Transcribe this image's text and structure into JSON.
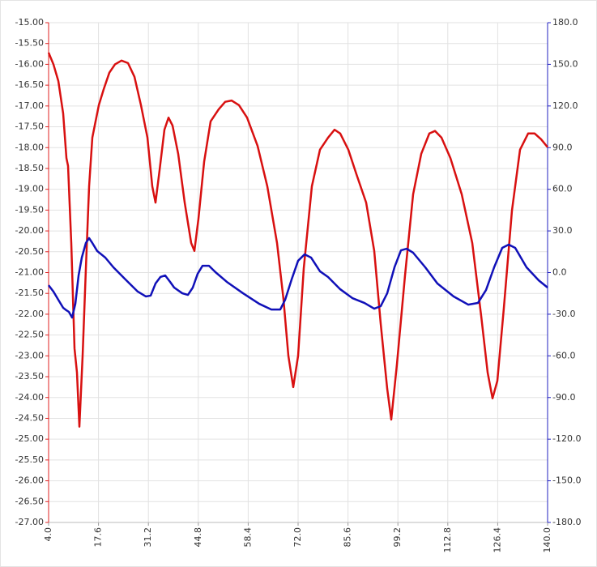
{
  "chart_data": {
    "type": "line",
    "xlim": [
      4,
      140
    ],
    "xticks": [
      {
        "value": 4,
        "label": "4.0"
      },
      17.6,
      31.2,
      44.8,
      58.4,
      {
        "value": 72,
        "label": "72.0"
      },
      85.6,
      99.2,
      112.8,
      126.4,
      {
        "value": 140,
        "label": "140.0"
      }
    ],
    "ylim": [
      -27,
      -15
    ],
    "yticks": [
      {
        "value": -15,
        "label": "-15.00"
      },
      {
        "value": -15.5,
        "label": "-15.50"
      },
      {
        "value": -16,
        "label": "-16.00"
      },
      {
        "value": -16.5,
        "label": "-16.50"
      },
      {
        "value": -17,
        "label": "-17.00"
      },
      {
        "value": -17.5,
        "label": "-17.50"
      },
      {
        "value": -18,
        "label": "-18.00"
      },
      {
        "value": -18.5,
        "label": "-18.50"
      },
      {
        "value": -19,
        "label": "-19.00"
      },
      {
        "value": -19.5,
        "label": "-19.50"
      },
      {
        "value": -20,
        "label": "-20.00"
      },
      {
        "value": -20.5,
        "label": "-20.50"
      },
      {
        "value": -21,
        "label": "-21.00"
      },
      {
        "value": -21.5,
        "label": "-21.50"
      },
      {
        "value": -22,
        "label": "-22.00"
      },
      {
        "value": -22.5,
        "label": "-22.50"
      },
      {
        "value": -23,
        "label": "-23.00"
      },
      {
        "value": -23.5,
        "label": "-23.50"
      },
      {
        "value": -24,
        "label": "-24.00"
      },
      {
        "value": -24.5,
        "label": "-24.50"
      },
      {
        "value": -25,
        "label": "-25.00"
      },
      {
        "value": -25.5,
        "label": "-25.50"
      },
      {
        "value": -26,
        "label": "-26.00"
      },
      {
        "value": -26.5,
        "label": "-26.50"
      },
      {
        "value": -27,
        "label": "-27.00"
      }
    ],
    "y2lim": [
      -180,
      180
    ],
    "y2ticks": [
      {
        "value": 180,
        "label": "180.0"
      },
      {
        "value": 150,
        "label": "150.0"
      },
      {
        "value": 120,
        "label": "120.0"
      },
      {
        "value": 90,
        "label": "90.0"
      },
      {
        "value": 60,
        "label": "60.0"
      },
      {
        "value": 30,
        "label": "30.0"
      },
      {
        "value": 0,
        "label": "0.0"
      },
      {
        "value": -30,
        "label": "-30.0"
      },
      {
        "value": -60,
        "label": "-60.0"
      },
      {
        "value": -90,
        "label": "-90.0"
      },
      {
        "value": -120,
        "label": "-120.0"
      },
      {
        "value": -150,
        "label": "-150.0"
      },
      {
        "value": -180,
        "label": "-180.0"
      }
    ],
    "grid": true,
    "y_axis_color": "#e02020",
    "y2_axis_color": "#2020c0",
    "series": [
      {
        "color": "#d81010",
        "x": [
          4.0,
          5.32,
          6.65,
          7.97,
          8.86,
          9.3,
          10.18,
          11.06,
          11.73,
          12.39,
          13.27,
          14.16,
          15.04,
          15.92,
          16.8,
          17.69,
          19.01,
          20.56,
          22.1,
          23.87,
          25.64,
          27.4,
          29.17,
          30.94,
          32.26,
          33.14,
          34.25,
          35.57,
          36.68,
          37.78,
          39.32,
          41.09,
          42.86,
          43.74,
          44.84,
          46.39,
          48.16,
          50.36,
          52.13,
          53.9,
          55.88,
          58.09,
          60.96,
          63.61,
          66.26,
          68.03,
          69.35,
          70.68,
          72.0,
          73.54,
          75.75,
          77.96,
          80.17,
          81.93,
          83.48,
          85.69,
          87.9,
          90.55,
          92.75,
          94.52,
          96.29,
          97.39,
          98.94,
          101.14,
          103.35,
          105.56,
          107.77,
          109.31,
          111.08,
          113.51,
          116.6,
          119.47,
          121.9,
          123.66,
          124.99,
          126.31,
          128.08,
          130.29,
          132.49,
          134.7,
          136.47,
          138.23,
          140.0
        ],
        "values": [
          -15.72,
          -16.0,
          -16.4,
          -17.18,
          -18.25,
          -18.44,
          -20.29,
          -22.82,
          -23.4,
          -24.7,
          -23.0,
          -20.9,
          -18.93,
          -17.76,
          -17.37,
          -16.98,
          -16.6,
          -16.2,
          -16.0,
          -15.91,
          -15.97,
          -16.3,
          -16.98,
          -17.76,
          -18.93,
          -19.32,
          -18.54,
          -17.57,
          -17.28,
          -17.47,
          -18.15,
          -19.32,
          -20.29,
          -20.48,
          -19.71,
          -18.34,
          -17.37,
          -17.08,
          -16.9,
          -16.87,
          -16.98,
          -17.28,
          -17.96,
          -18.93,
          -20.29,
          -21.65,
          -23.0,
          -23.75,
          -23.0,
          -20.9,
          -18.93,
          -18.05,
          -17.76,
          -17.57,
          -17.66,
          -18.05,
          -18.64,
          -19.32,
          -20.48,
          -22.23,
          -23.79,
          -24.53,
          -23.2,
          -21.07,
          -19.12,
          -18.15,
          -17.66,
          -17.6,
          -17.76,
          -18.25,
          -19.12,
          -20.29,
          -22.04,
          -23.4,
          -24.02,
          -23.6,
          -21.85,
          -19.51,
          -18.05,
          -17.66,
          -17.66,
          -17.8,
          -17.99
        ]
      },
      {
        "color": "#1010b8",
        "axis": "y2",
        "x": [
          4.0,
          5.32,
          6.65,
          7.97,
          8.86,
          9.52,
          10.4,
          11.29,
          12.17,
          13.05,
          14.16,
          15.04,
          15.92,
          17.25,
          19.45,
          21.66,
          24.97,
          28.29,
          30.49,
          31.82,
          33.14,
          34.47,
          35.79,
          37.12,
          38.22,
          40.43,
          41.97,
          43.3,
          44.62,
          45.95,
          47.71,
          49.48,
          52.57,
          56.99,
          61.4,
          64.71,
          67.14,
          68.47,
          70.23,
          72.0,
          73.77,
          75.53,
          77.96,
          80.17,
          83.48,
          86.79,
          90.1,
          92.75,
          94.52,
          96.29,
          98.27,
          100.04,
          101.59,
          103.35,
          106.66,
          109.97,
          114.39,
          118.36,
          121.01,
          123.22,
          125.43,
          127.64,
          129.4,
          131.17,
          134.26,
          137.58,
          140.0
        ],
        "values": [
          -9.1,
          -13.7,
          -19.6,
          -25.4,
          -27.2,
          -28.3,
          -32.4,
          -22.5,
          -2.1,
          10.8,
          21.3,
          24.8,
          21.3,
          15.5,
          10.8,
          3.8,
          -5.0,
          -13.7,
          -17.2,
          -16.6,
          -7.9,
          -3.2,
          -2.1,
          -6.7,
          -10.8,
          -14.9,
          -16.1,
          -10.8,
          -0.9,
          4.9,
          4.9,
          0.3,
          -6.7,
          -14.9,
          -22.5,
          -26.6,
          -26.6,
          -19.6,
          -5.0,
          8.5,
          13.1,
          10.8,
          0.9,
          -3.2,
          -12.0,
          -18.4,
          -21.9,
          -26.0,
          -24.2,
          -14.9,
          3.8,
          16.0,
          17.2,
          14.3,
          3.8,
          -7.9,
          -17.2,
          -23.1,
          -21.9,
          -12.6,
          3.8,
          17.8,
          20.1,
          17.8,
          3.8,
          -5.6,
          -10.8
        ]
      }
    ]
  }
}
